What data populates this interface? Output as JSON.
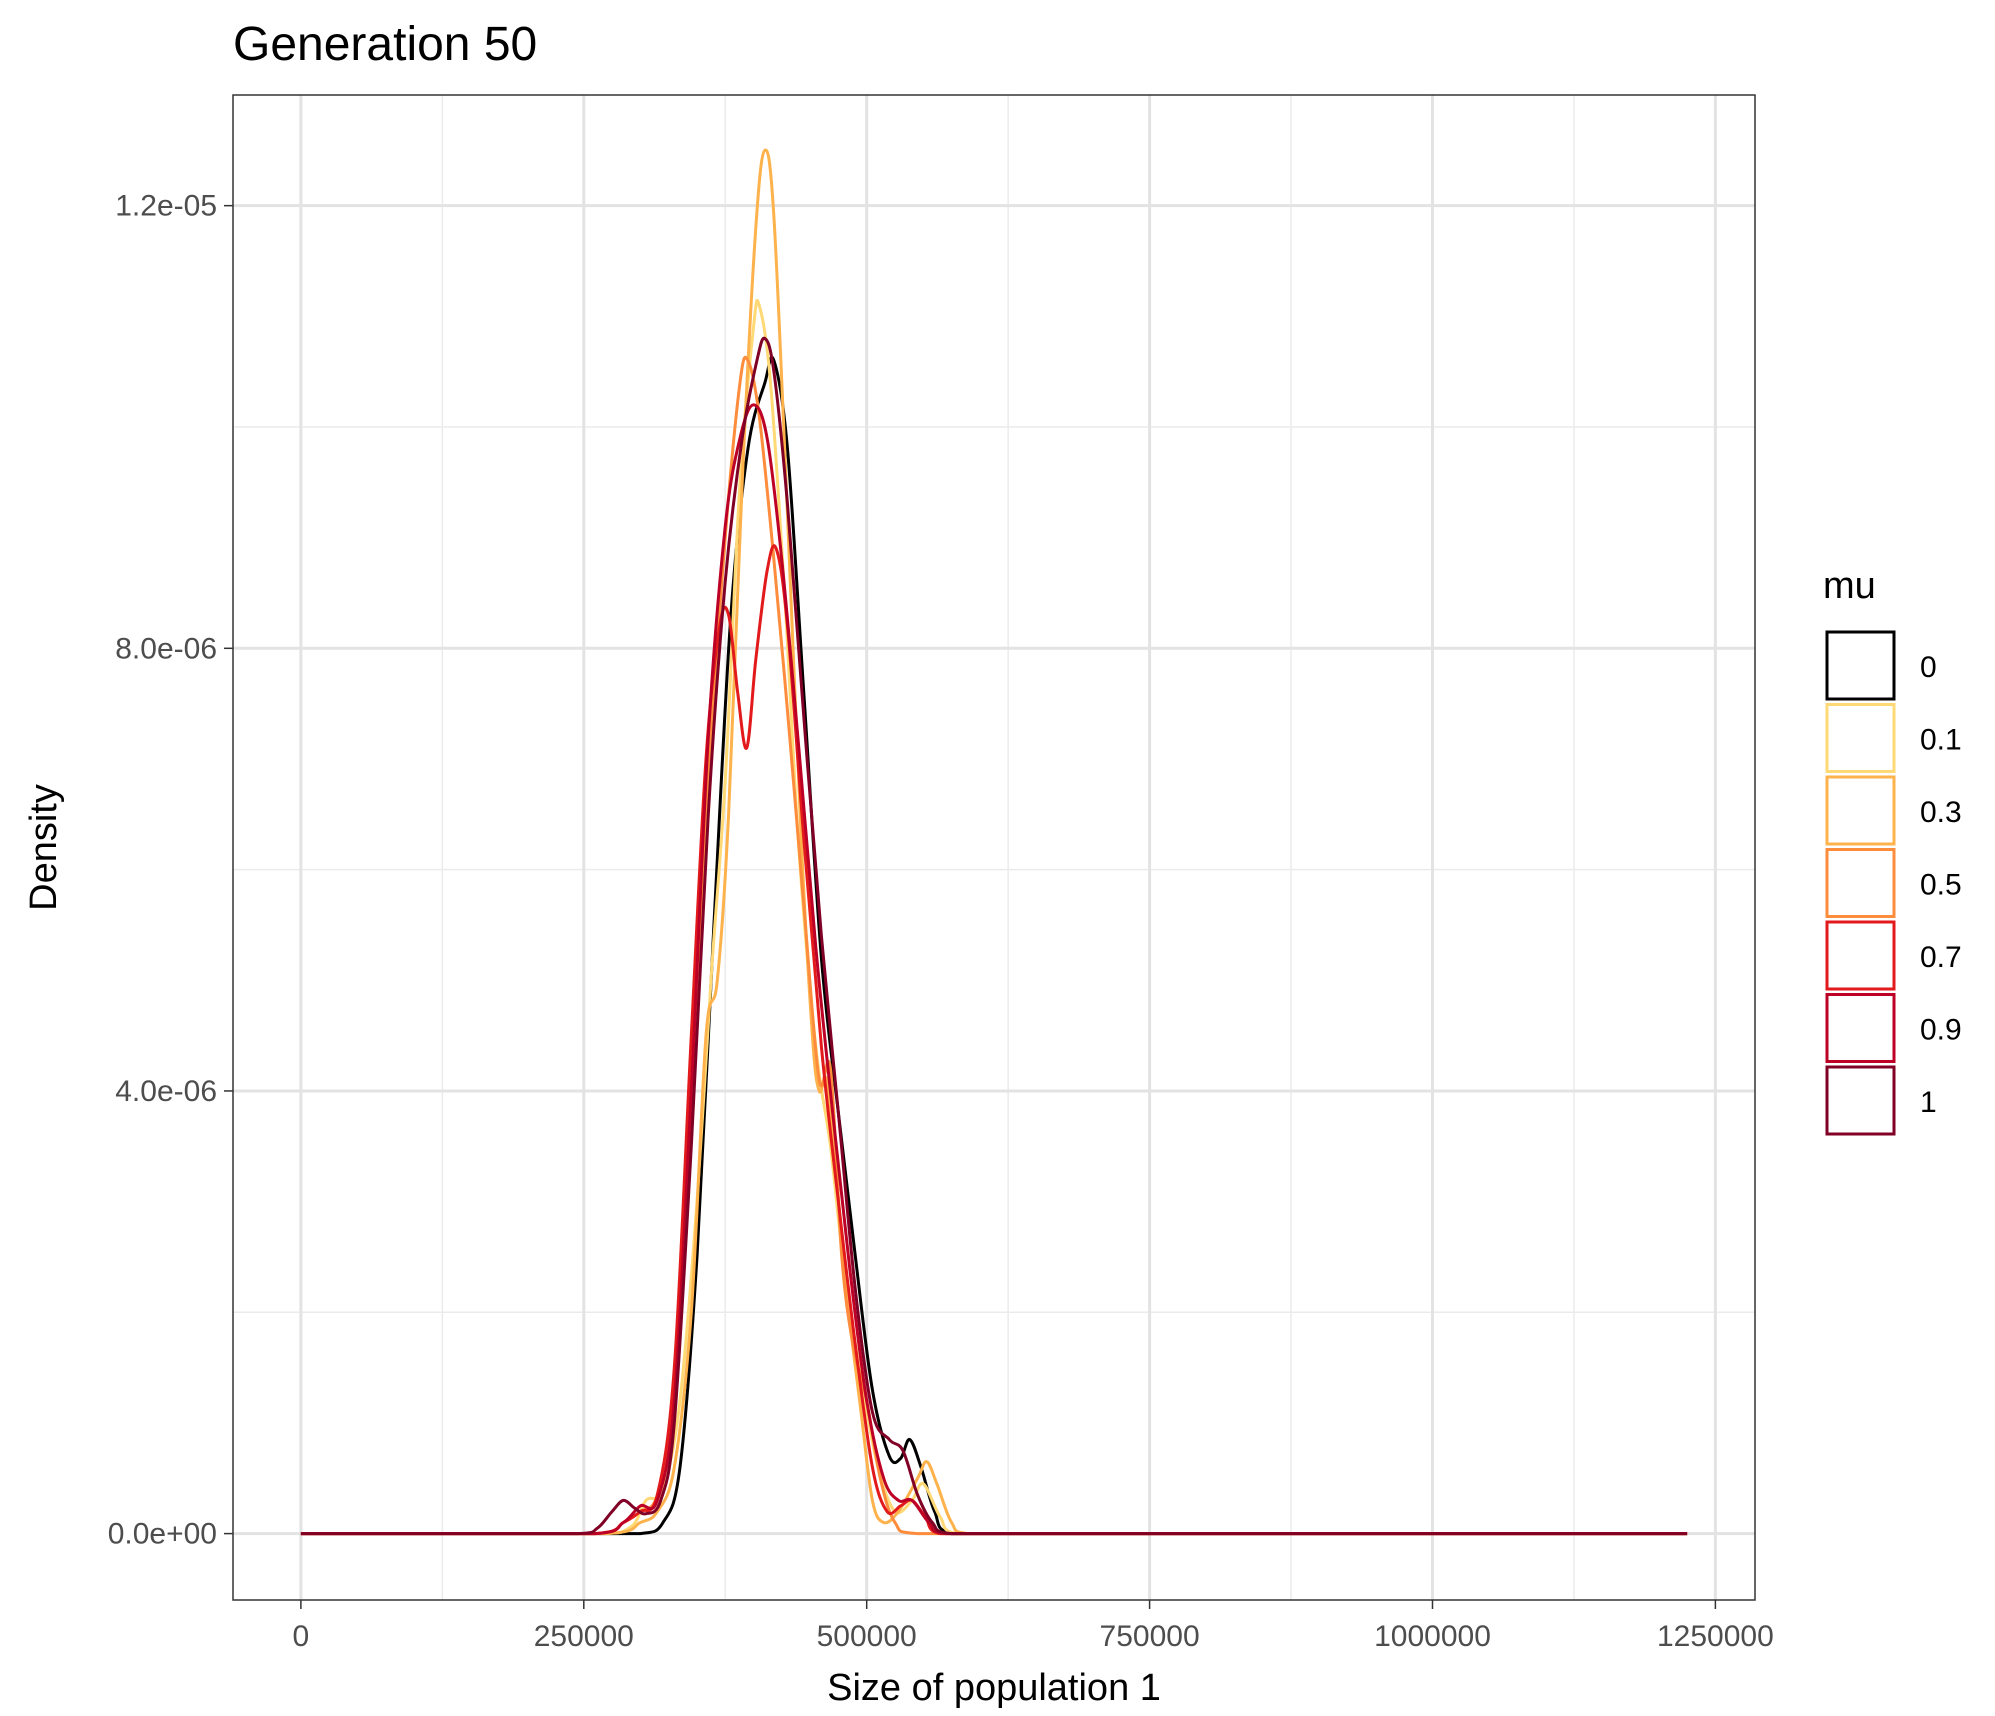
{
  "chart_data": {
    "type": "line",
    "title": "Generation 50",
    "xlabel": "Size of population 1",
    "ylabel": "Density",
    "xlim": [
      -60000,
      1285000
    ],
    "ylim": [
      -6e-07,
      1.3e-05
    ],
    "x_ticks": [
      0,
      250000,
      500000,
      750000,
      1000000,
      1250000
    ],
    "x_tick_labels": [
      "0",
      "250000",
      "500000",
      "750000",
      "1000000",
      "1250000"
    ],
    "y_ticks": [
      0,
      4e-06,
      8e-06,
      1.2e-05
    ],
    "y_tick_labels": [
      "0.0e+00",
      "4.0e-06",
      "8.0e-06",
      "1.2e-05"
    ],
    "grid": true,
    "legend": {
      "title": "mu",
      "position": "right"
    },
    "series": [
      {
        "name": "0",
        "color": "#000000",
        "points": [
          [
            0,
            0
          ],
          [
            250000,
            0
          ],
          [
            300000,
            0
          ],
          [
            320000,
            1e-07
          ],
          [
            335000,
            6e-07
          ],
          [
            350000,
            2.5e-06
          ],
          [
            365000,
            5.5e-06
          ],
          [
            380000,
            8.3e-06
          ],
          [
            395000,
            9.8e-06
          ],
          [
            410000,
            1.04e-05
          ],
          [
            418000,
            1.06e-05
          ],
          [
            430000,
            9.8e-06
          ],
          [
            445000,
            7.5e-06
          ],
          [
            460000,
            5.2e-06
          ],
          [
            475000,
            3.8e-06
          ],
          [
            490000,
            2.5e-06
          ],
          [
            505000,
            1.3e-06
          ],
          [
            520000,
            7e-07
          ],
          [
            530000,
            6.8e-07
          ],
          [
            538000,
            8.5e-07
          ],
          [
            548000,
            6e-07
          ],
          [
            560000,
            2e-07
          ],
          [
            575000,
            0
          ],
          [
            1225000,
            0
          ]
        ]
      },
      {
        "name": "0.1",
        "color": "#FED976",
        "points": [
          [
            0,
            0
          ],
          [
            250000,
            0
          ],
          [
            290000,
            5e-08
          ],
          [
            305000,
            3e-07
          ],
          [
            320000,
            4e-07
          ],
          [
            335000,
            1.2e-06
          ],
          [
            350000,
            3e-06
          ],
          [
            363000,
            5.1e-06
          ],
          [
            375000,
            6.8e-06
          ],
          [
            388000,
            9.5e-06
          ],
          [
            400000,
            1.09e-05
          ],
          [
            405000,
            1.11e-05
          ],
          [
            415000,
            1.04e-05
          ],
          [
            428000,
            8.4e-06
          ],
          [
            440000,
            6.2e-06
          ],
          [
            455000,
            4.4e-06
          ],
          [
            468000,
            3.5e-06
          ],
          [
            480000,
            2.4e-06
          ],
          [
            495000,
            1.4e-06
          ],
          [
            510000,
            6e-07
          ],
          [
            525000,
            2e-07
          ],
          [
            540000,
            3e-07
          ],
          [
            550000,
            4.5e-07
          ],
          [
            565000,
            1.5e-07
          ],
          [
            580000,
            0
          ],
          [
            1225000,
            0
          ]
        ]
      },
      {
        "name": "0.3",
        "color": "#FEB24C",
        "points": [
          [
            0,
            0
          ],
          [
            270000,
            0
          ],
          [
            300000,
            1e-07
          ],
          [
            315000,
            2e-07
          ],
          [
            330000,
            6e-07
          ],
          [
            345000,
            2e-06
          ],
          [
            358000,
            4.5e-06
          ],
          [
            368000,
            5e-06
          ],
          [
            378000,
            6.5e-06
          ],
          [
            390000,
            9.5e-06
          ],
          [
            402000,
            1.18e-05
          ],
          [
            410000,
            1.25e-05
          ],
          [
            418000,
            1.19e-05
          ],
          [
            430000,
            9.2e-06
          ],
          [
            442000,
            6.3e-06
          ],
          [
            452000,
            4.5e-06
          ],
          [
            458000,
            4e-06
          ],
          [
            465000,
            4.1e-06
          ],
          [
            472000,
            3.4e-06
          ],
          [
            482000,
            2.2e-06
          ],
          [
            495000,
            1.1e-06
          ],
          [
            505000,
            3e-07
          ],
          [
            515000,
            1e-07
          ],
          [
            528000,
            2e-07
          ],
          [
            545000,
            5e-07
          ],
          [
            553000,
            6.5e-07
          ],
          [
            562000,
            4.5e-07
          ],
          [
            575000,
            1e-07
          ],
          [
            590000,
            0
          ],
          [
            1225000,
            0
          ]
        ]
      },
      {
        "name": "0.5",
        "color": "#FD8D3C",
        "points": [
          [
            0,
            0
          ],
          [
            260000,
            0
          ],
          [
            285000,
            1e-07
          ],
          [
            300000,
            2e-07
          ],
          [
            315000,
            3.5e-07
          ],
          [
            330000,
            1.2e-06
          ],
          [
            345000,
            3.8e-06
          ],
          [
            360000,
            6.8e-06
          ],
          [
            375000,
            9e-06
          ],
          [
            388000,
            1.04e-05
          ],
          [
            395000,
            1.06e-05
          ],
          [
            405000,
            1.01e-05
          ],
          [
            418000,
            8.8e-06
          ],
          [
            432000,
            7.2e-06
          ],
          [
            445000,
            5.6e-06
          ],
          [
            458000,
            4.1e-06
          ],
          [
            468000,
            4.2e-06
          ],
          [
            478000,
            2.5e-06
          ],
          [
            488000,
            1.7e-06
          ],
          [
            500000,
            1.2e-06
          ],
          [
            512000,
            5e-07
          ],
          [
            525000,
            1e-07
          ],
          [
            545000,
            0
          ],
          [
            1225000,
            0
          ]
        ]
      },
      {
        "name": "0.7",
        "color": "#E31A1C",
        "points": [
          [
            0,
            0
          ],
          [
            260000,
            0
          ],
          [
            285000,
            1e-07
          ],
          [
            300000,
            2e-07
          ],
          [
            315000,
            3.5e-07
          ],
          [
            330000,
            1.5e-06
          ],
          [
            345000,
            4.5e-06
          ],
          [
            358000,
            7e-06
          ],
          [
            370000,
            8.2e-06
          ],
          [
            378000,
            8.3e-06
          ],
          [
            386000,
            7.6e-06
          ],
          [
            394000,
            7.1e-06
          ],
          [
            402000,
            7.9e-06
          ],
          [
            412000,
            8.7e-06
          ],
          [
            420000,
            8.9e-06
          ],
          [
            430000,
            8.2e-06
          ],
          [
            445000,
            6.2e-06
          ],
          [
            460000,
            4.4e-06
          ],
          [
            475000,
            3e-06
          ],
          [
            490000,
            1.7e-06
          ],
          [
            505000,
            6e-07
          ],
          [
            518000,
            2e-07
          ],
          [
            530000,
            2.5e-07
          ],
          [
            540000,
            3e-07
          ],
          [
            552000,
            1.5e-07
          ],
          [
            565000,
            0
          ],
          [
            1225000,
            0
          ]
        ]
      },
      {
        "name": "0.9",
        "color": "#BD0026",
        "points": [
          [
            0,
            0
          ],
          [
            260000,
            0
          ],
          [
            285000,
            1e-07
          ],
          [
            300000,
            2.5e-07
          ],
          [
            315000,
            3e-07
          ],
          [
            330000,
            1.2e-06
          ],
          [
            345000,
            4e-06
          ],
          [
            360000,
            7.2e-06
          ],
          [
            375000,
            9.1e-06
          ],
          [
            388000,
            9.9e-06
          ],
          [
            400000,
            1.02e-05
          ],
          [
            412000,
            9.9e-06
          ],
          [
            425000,
            8.8e-06
          ],
          [
            440000,
            7.1e-06
          ],
          [
            455000,
            5.3e-06
          ],
          [
            470000,
            3.8e-06
          ],
          [
            485000,
            2.4e-06
          ],
          [
            500000,
            1.2e-06
          ],
          [
            515000,
            5e-07
          ],
          [
            528000,
            3e-07
          ],
          [
            540000,
            3e-07
          ],
          [
            555000,
            1e-07
          ],
          [
            570000,
            0
          ],
          [
            1225000,
            0
          ]
        ]
      },
      {
        "name": "1",
        "color": "#800026",
        "points": [
          [
            0,
            0
          ],
          [
            245000,
            0
          ],
          [
            262000,
            5e-08
          ],
          [
            275000,
            2e-07
          ],
          [
            285000,
            3e-07
          ],
          [
            295000,
            2.3e-07
          ],
          [
            305000,
            1.8e-07
          ],
          [
            318000,
            3e-07
          ],
          [
            330000,
            1e-06
          ],
          [
            345000,
            3.5e-06
          ],
          [
            360000,
            6.5e-06
          ],
          [
            375000,
            8.6e-06
          ],
          [
            390000,
            9.9e-06
          ],
          [
            403000,
            1.06e-05
          ],
          [
            410000,
            1.08e-05
          ],
          [
            418000,
            1.05e-05
          ],
          [
            430000,
            9.3e-06
          ],
          [
            445000,
            7.3e-06
          ],
          [
            460000,
            5.4e-06
          ],
          [
            475000,
            3.8e-06
          ],
          [
            490000,
            2.2e-06
          ],
          [
            505000,
            1.1e-06
          ],
          [
            520000,
            8.5e-07
          ],
          [
            532000,
            7.5e-07
          ],
          [
            545000,
            3.5e-07
          ],
          [
            558000,
            1e-07
          ],
          [
            575000,
            0
          ],
          [
            1225000,
            0
          ]
        ]
      }
    ]
  }
}
